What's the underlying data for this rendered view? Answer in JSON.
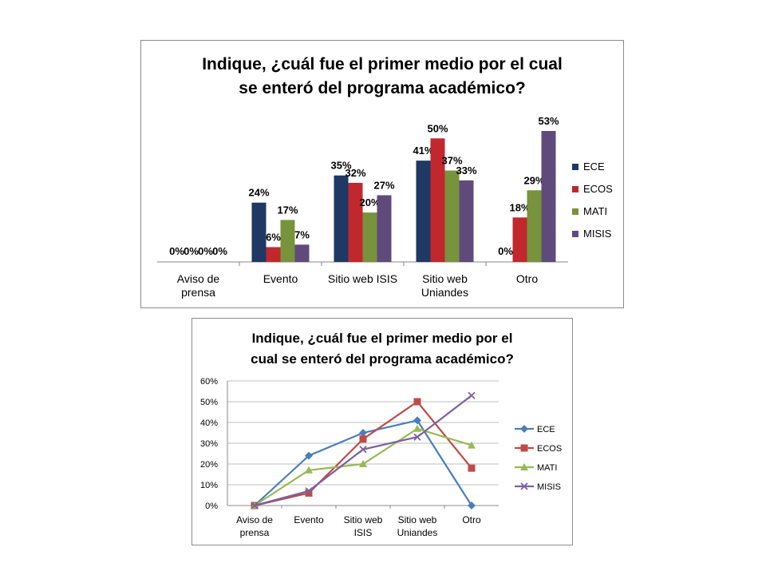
{
  "chart_data": [
    {
      "type": "bar",
      "title_lines": [
        "Indique, ¿cuál fue el primer medio por el cual",
        "se enteró del programa académico?"
      ],
      "categories": [
        [
          "Aviso de",
          "prensa"
        ],
        [
          "Evento"
        ],
        [
          "Sitio web ISIS"
        ],
        [
          "Sitio web",
          "Uniandes"
        ],
        [
          "Otro"
        ]
      ],
      "series": [
        {
          "name": "ECE",
          "color": "#1f3864",
          "values": [
            0,
            24,
            35,
            41,
            0
          ],
          "labels": [
            "0%",
            "24%",
            "35%",
            "41%",
            "0%"
          ]
        },
        {
          "name": "ECOS",
          "color": "#c0282d",
          "values": [
            0,
            6,
            32,
            50,
            18
          ],
          "labels": [
            "0%",
            "6%",
            "32%",
            "50%",
            "18%"
          ]
        },
        {
          "name": "MATI",
          "color": "#77933c",
          "values": [
            0,
            17,
            20,
            37,
            29
          ],
          "labels": [
            "0%",
            "17%",
            "20%",
            "37%",
            "29%"
          ]
        },
        {
          "name": "MISIS",
          "color": "#604a7b",
          "values": [
            0,
            7,
            27,
            33,
            53
          ],
          "labels": [
            "0%",
            "7%",
            "27%",
            "33%",
            "53%"
          ]
        }
      ],
      "ylim": [
        0,
        60
      ],
      "legend": "right",
      "grid": false
    },
    {
      "type": "line",
      "title_lines": [
        "Indique, ¿cuál fue el primer medio por el",
        "cual se enteró del programa académico?"
      ],
      "categories": [
        [
          "Aviso de",
          "prensa"
        ],
        [
          "Evento"
        ],
        [
          "Sitio web",
          "ISIS"
        ],
        [
          "Sitio web",
          "Uniandes"
        ],
        [
          "Otro"
        ]
      ],
      "yticks": [
        "0%",
        "10%",
        "20%",
        "30%",
        "40%",
        "50%",
        "60%"
      ],
      "ylim": [
        0,
        60
      ],
      "series": [
        {
          "name": "ECE",
          "color": "#4a7ebb",
          "marker": "diamond",
          "values": [
            0,
            24,
            35,
            41,
            0
          ]
        },
        {
          "name": "ECOS",
          "color": "#be4b48",
          "marker": "square",
          "values": [
            0,
            6,
            32,
            50,
            18
          ]
        },
        {
          "name": "MATI",
          "color": "#98b954",
          "marker": "triangle",
          "values": [
            0,
            17,
            20,
            37,
            29
          ]
        },
        {
          "name": "MISIS",
          "color": "#7d5fa0",
          "marker": "x",
          "values": [
            0,
            7,
            27,
            33,
            53
          ]
        }
      ],
      "legend": "right",
      "grid": true
    }
  ]
}
